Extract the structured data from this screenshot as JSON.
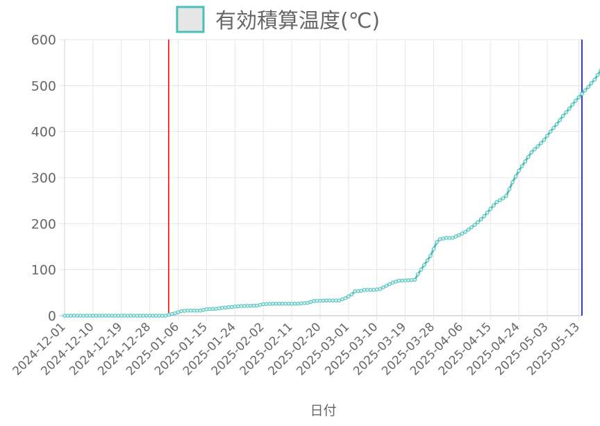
{
  "chart_data": {
    "type": "line",
    "legend": {
      "label": "有効積算温度(℃)",
      "position": "top",
      "swatch_fill": "#e6e6e6",
      "swatch_stroke": "#4bbfb8"
    },
    "xlabel": "日付",
    "ylabel": "",
    "ylim": [
      0,
      600
    ],
    "yticks": [
      0,
      100,
      200,
      300,
      400,
      500,
      600
    ],
    "x_start": "2024-12-01",
    "x_end": "2025-05-14",
    "xtick_labels": [
      "2024-12-01",
      "2024-12-10",
      "2024-12-19",
      "2024-12-28",
      "2025-01-06",
      "2025-01-15",
      "2025-01-24",
      "2025-02-02",
      "2025-02-11",
      "2025-02-20",
      "2025-03-01",
      "2025-03-10",
      "2025-03-19",
      "2025-03-28",
      "2025-04-06",
      "2025-04-15",
      "2025-04-24",
      "2025-05-03",
      "2025-05-13"
    ],
    "grid": true,
    "series": [
      {
        "line_color": "#4bbfb8",
        "point_fill": "#cfeeed",
        "points": [
          [
            "2024-12-01",
            0
          ],
          [
            "2025-01-02",
            0
          ],
          [
            "2025-01-03",
            2
          ],
          [
            "2025-01-05",
            5
          ],
          [
            "2025-01-07",
            10
          ],
          [
            "2025-01-09",
            11
          ],
          [
            "2025-01-13",
            11
          ],
          [
            "2025-01-15",
            14
          ],
          [
            "2025-01-18",
            15
          ],
          [
            "2025-01-20",
            17
          ],
          [
            "2025-01-23",
            19
          ],
          [
            "2025-01-26",
            21
          ],
          [
            "2025-01-31",
            22
          ],
          [
            "2025-02-02",
            25
          ],
          [
            "2025-02-05",
            26
          ],
          [
            "2025-02-13",
            26
          ],
          [
            "2025-02-16",
            28
          ],
          [
            "2025-02-18",
            32
          ],
          [
            "2025-02-22",
            33
          ],
          [
            "2025-02-26",
            33
          ],
          [
            "2025-02-28",
            38
          ],
          [
            "2025-03-02",
            46
          ],
          [
            "2025-03-03",
            53
          ],
          [
            "2025-03-05",
            54
          ],
          [
            "2025-03-06",
            56
          ],
          [
            "2025-03-09",
            56
          ],
          [
            "2025-03-11",
            58
          ],
          [
            "2025-03-13",
            65
          ],
          [
            "2025-03-15",
            72
          ],
          [
            "2025-03-17",
            76
          ],
          [
            "2025-03-20",
            77
          ],
          [
            "2025-03-22",
            78
          ],
          [
            "2025-03-23",
            90
          ],
          [
            "2025-03-25",
            110
          ],
          [
            "2025-03-27",
            130
          ],
          [
            "2025-03-29",
            160
          ],
          [
            "2025-03-30",
            166
          ],
          [
            "2025-04-01",
            169
          ],
          [
            "2025-04-03",
            169
          ],
          [
            "2025-04-05",
            175
          ],
          [
            "2025-04-07",
            182
          ],
          [
            "2025-04-09",
            192
          ],
          [
            "2025-04-11",
            203
          ],
          [
            "2025-04-13",
            216
          ],
          [
            "2025-04-15",
            232
          ],
          [
            "2025-04-17",
            247
          ],
          [
            "2025-04-19",
            255
          ],
          [
            "2025-04-20",
            260
          ],
          [
            "2025-04-22",
            290
          ],
          [
            "2025-04-24",
            315
          ],
          [
            "2025-04-26",
            335
          ],
          [
            "2025-04-28",
            355
          ],
          [
            "2025-04-30",
            368
          ],
          [
            "2025-05-02",
            382
          ],
          [
            "2025-05-04",
            400
          ],
          [
            "2025-05-06",
            416
          ],
          [
            "2025-05-08",
            434
          ],
          [
            "2025-05-10",
            450
          ],
          [
            "2025-05-12",
            467
          ],
          [
            "2025-05-14",
            482
          ],
          [
            "2025-05-16",
            497
          ],
          [
            "2025-05-18",
            513
          ],
          [
            "2025-05-20",
            533
          ]
        ]
      }
    ],
    "vlines": [
      {
        "x": "2025-01-03",
        "color": "#ff0000"
      },
      {
        "x": "2025-05-14",
        "color": "#0000ff"
      }
    ]
  }
}
